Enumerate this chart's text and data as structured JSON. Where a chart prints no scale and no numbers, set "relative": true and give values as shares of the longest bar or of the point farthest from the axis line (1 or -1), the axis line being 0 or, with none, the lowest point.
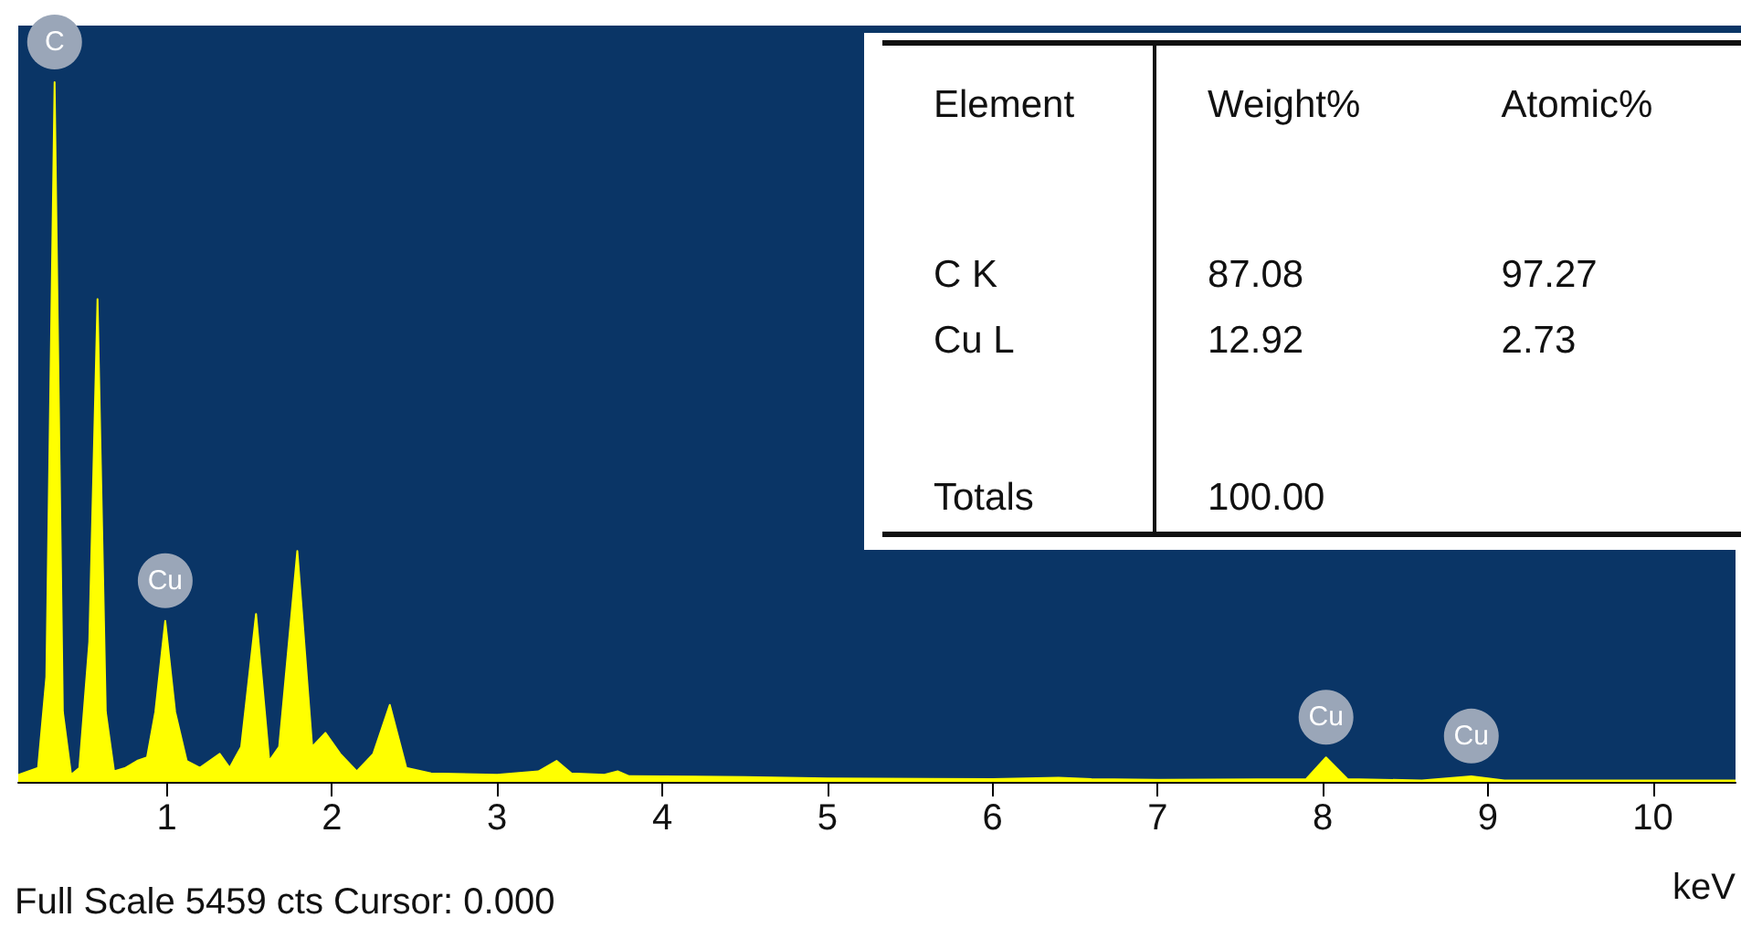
{
  "chart_data": [
    {
      "type": "area",
      "relative": true,
      "xlabel": "keV",
      "xlim": [
        0.1,
        10.5
      ],
      "xticks": [
        1,
        2,
        3,
        4,
        5,
        6,
        7,
        8,
        9,
        10
      ],
      "grid": false,
      "annotations": [
        {
          "text": "C",
          "x": 0.32,
          "y": 1
        },
        {
          "text": "Cu",
          "x": 0.99,
          "y": 0.23
        },
        {
          "text": "Cu",
          "x": 8.02,
          "y": 0.035
        },
        {
          "text": "Cu",
          "x": 8.9,
          "y": 0.008
        },
        "Full Scale 5459 cts Cursor: 0.000"
      ],
      "series": [
        {
          "color": "#ffff00",
          "x": [
            0.1,
            0.22,
            0.27,
            0.32,
            0.37,
            0.42,
            0.47,
            0.53,
            0.58,
            0.63,
            0.68,
            0.75,
            0.82,
            0.88,
            0.93,
            0.99,
            1.05,
            1.12,
            1.2,
            1.32,
            1.38,
            1.45,
            1.54,
            1.62,
            1.68,
            1.79,
            1.88,
            1.96,
            2.05,
            2.15,
            2.25,
            2.35,
            2.45,
            2.6,
            3,
            3.25,
            3.36,
            3.45,
            3.65,
            3.73,
            3.8,
            4.5,
            5,
            6,
            6.4,
            6.6,
            7,
            7.9,
            8.02,
            8.15,
            8.6,
            8.9,
            9.1,
            10.5
          ],
          "values": [
            0.01,
            0.02,
            0.15,
            1,
            0.1,
            0.01,
            0.02,
            0.2,
            0.69,
            0.1,
            0.015,
            0.02,
            0.03,
            0.035,
            0.1,
            0.23,
            0.1,
            0.03,
            0.02,
            0.04,
            0.02,
            0.05,
            0.24,
            0.03,
            0.05,
            0.33,
            0.05,
            0.07,
            0.04,
            0.015,
            0.04,
            0.11,
            0.02,
            0.012,
            0.01,
            0.015,
            0.03,
            0.012,
            0.01,
            0.015,
            0.008,
            0.007,
            0.005,
            0.004,
            0.006,
            0.004,
            0.003,
            0.004,
            0.035,
            0.004,
            0.002,
            0.008,
            0.002,
            0.002
          ]
        }
      ]
    },
    {
      "type": "other",
      "xlabel": "Element",
      "categories": [
        "C K",
        "Cu L",
        "Totals"
      ],
      "series": [
        {
          "name": "Weight%",
          "values": [
            87.08,
            12.92,
            100
          ],
          "value_labels": [
            "87.08",
            "12.92",
            "100.00"
          ]
        },
        {
          "name": "Atomic%",
          "values": [
            97.27,
            2.73,
            null
          ],
          "value_labels": [
            "97.27",
            "2.73",
            null
          ]
        }
      ]
    }
  ]
}
